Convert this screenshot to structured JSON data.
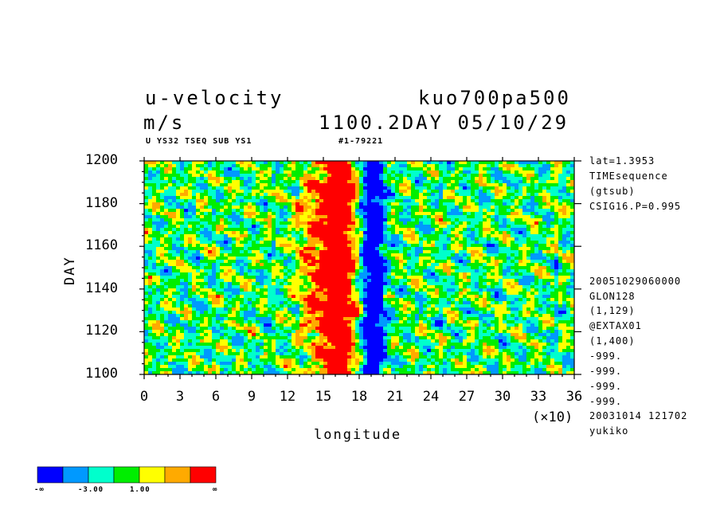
{
  "header": {
    "title_left": "u-velocity",
    "title_right": "kuo700pa500",
    "units": "m/s",
    "time_label": "1100.2DAY 05/10/29",
    "sub_left": "U YS32 TSEQ SUB YS1",
    "sub_right": "#1-79221"
  },
  "side_info": [
    "lat=1.3953",
    "TIMEsequence",
    "(gtsub)",
    "CSIG16.P=0.995",
    "20051029060000",
    "GLON128",
    "(1,129)",
    "@EXTAX01",
    "(1,400)",
    "-999.",
    "-999.",
    "-999.",
    "-999.",
    "20031014 121702",
    "yukiko"
  ],
  "chart_data": {
    "type": "heatmap",
    "xlabel": "longitude",
    "ylabel": "DAY",
    "x_multiplier_label": "(×10)",
    "xlim": [
      0,
      36
    ],
    "ylim": [
      1100,
      1200
    ],
    "x_ticks": [
      "0",
      "3",
      "6",
      "9",
      "12",
      "15",
      "18",
      "21",
      "24",
      "27",
      "30",
      "33",
      "36"
    ],
    "y_ticks": [
      "1100",
      "1120",
      "1140",
      "1160",
      "1180",
      "1200"
    ],
    "legend_placement": "bottom-left",
    "colorbar": {
      "labels": [
        "-∞",
        "-3.00",
        "1.00",
        "∞"
      ],
      "colors": [
        "#0000ff",
        "#0099ff",
        "#00ffcc",
        "#00ee00",
        "#ffff00",
        "#ffaa00",
        "#ff0000"
      ]
    }
  }
}
